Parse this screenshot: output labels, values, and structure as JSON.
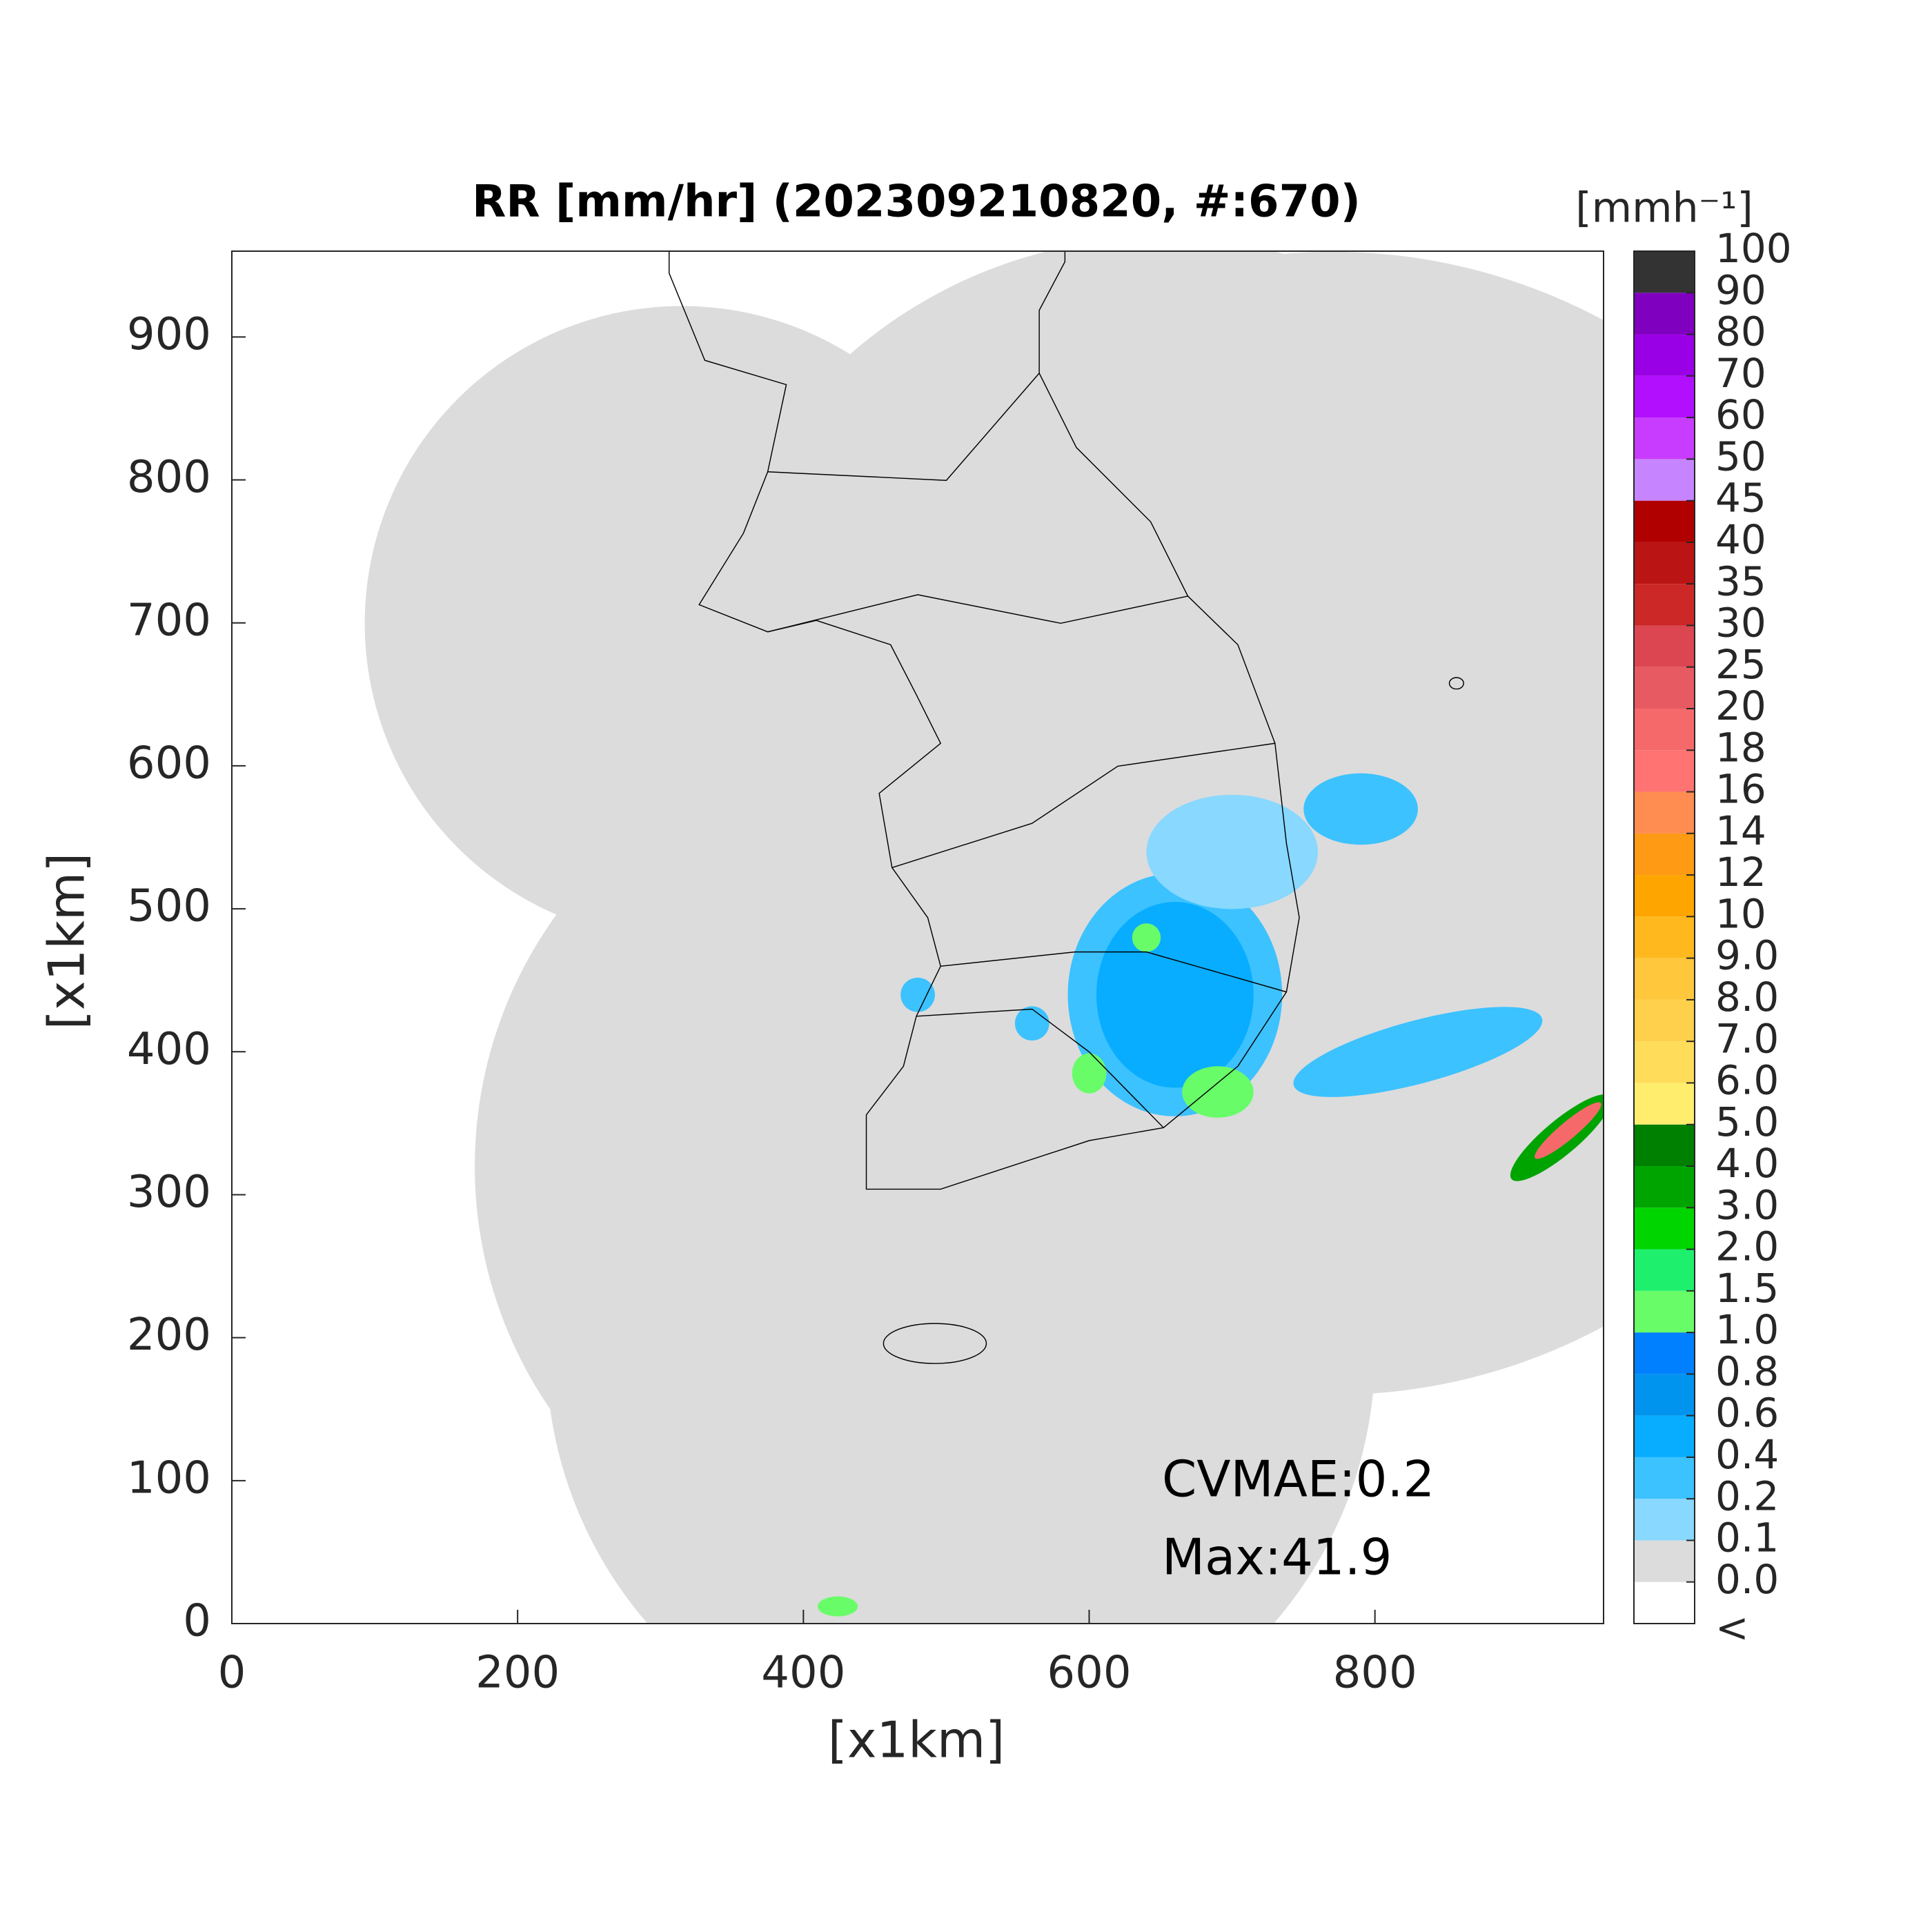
{
  "chart_data": {
    "type": "map",
    "title": "RR [mm/hr] (202309210820, #:670)",
    "xlabel": "[x1km]",
    "ylabel": "[x1km]",
    "xlim": [
      0,
      960
    ],
    "ylim": [
      0,
      960
    ],
    "xticks": [
      0,
      200,
      400,
      600,
      800
    ],
    "yticks": [
      0,
      100,
      200,
      300,
      400,
      500,
      600,
      700,
      800,
      900
    ],
    "colorbar": {
      "label": "[mmh⁻¹]",
      "under_label": "<",
      "ticks": [
        {
          "value": 0,
          "label": "0.0"
        },
        0.1,
        0.2,
        0.4,
        0.6,
        0.8,
        {
          "value": 1,
          "label": "1.0"
        },
        1.5,
        {
          "value": 2,
          "label": "2.0"
        },
        {
          "value": 3,
          "label": "3.0"
        },
        {
          "value": 4,
          "label": "4.0"
        },
        {
          "value": 5,
          "label": "5.0"
        },
        {
          "value": 6,
          "label": "6.0"
        },
        {
          "value": 7,
          "label": "7.0"
        },
        {
          "value": 8,
          "label": "8.0"
        },
        {
          "value": 9,
          "label": "9.0"
        },
        10,
        12,
        14,
        16,
        18,
        20,
        25,
        30,
        35,
        40,
        45,
        50,
        60,
        70,
        80,
        90,
        100
      ],
      "colors": [
        "#ffffff",
        "#dcdcdc",
        "#88d8ff",
        "#3cc2ff",
        "#08adff",
        "#0094ee",
        "#0080ff",
        "#69fc69",
        "#1ef06e",
        "#00d500",
        "#00a400",
        "#008000",
        "#ffee6e",
        "#ffdc5a",
        "#ffd04b",
        "#ffc83c",
        "#ffb91e",
        "#ffa500",
        "#ff9a14",
        "#ff8c50",
        "#ff7373",
        "#f5696b",
        "#e85a62",
        "#db4650",
        "#cc2828",
        "#bb1414",
        "#b00000",
        "#c784ff",
        "#c83cff",
        "#b30fff",
        "#9a00e6",
        "#7f00bf",
        "#333333"
      ]
    },
    "annotations": [
      "CVMAE:0.2",
      "Max:41.9"
    ]
  }
}
